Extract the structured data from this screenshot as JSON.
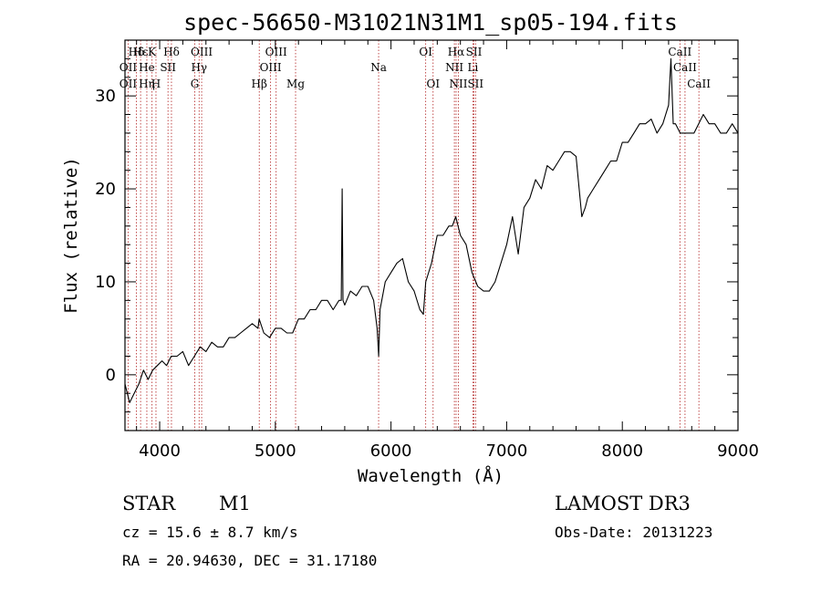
{
  "chart_data": {
    "type": "line",
    "title": "spec-56650-M31021N31M1_sp05-194.fits",
    "xlabel": "Wavelength (Å)",
    "ylabel": "Flux (relative)",
    "xlim": [
      3700,
      9000
    ],
    "ylim": [
      -6,
      36
    ],
    "x_ticks": [
      4000,
      5000,
      6000,
      7000,
      8000,
      9000
    ],
    "y_ticks": [
      0,
      10,
      20,
      30
    ],
    "x_tick_labels": [
      "4000",
      "5000",
      "6000",
      "7000",
      "8000",
      "9000"
    ],
    "y_tick_labels": [
      "0",
      "10",
      "20",
      "30"
    ],
    "series": [
      {
        "name": "spectrum",
        "x": [
          3700,
          3740,
          3780,
          3820,
          3860,
          3900,
          3940,
          3980,
          4020,
          4060,
          4100,
          4150,
          4200,
          4250,
          4300,
          4350,
          4400,
          4450,
          4500,
          4550,
          4600,
          4650,
          4700,
          4750,
          4800,
          4850,
          4860,
          4900,
          4950,
          5000,
          5050,
          5100,
          5150,
          5200,
          5250,
          5300,
          5350,
          5400,
          5450,
          5500,
          5550,
          5570,
          5578,
          5585,
          5600,
          5650,
          5700,
          5750,
          5800,
          5850,
          5880,
          5893,
          5905,
          5950,
          6000,
          6050,
          6100,
          6150,
          6200,
          6250,
          6280,
          6300,
          6350,
          6400,
          6450,
          6500,
          6530,
          6560,
          6600,
          6650,
          6700,
          6750,
          6800,
          6850,
          6900,
          6950,
          7000,
          7050,
          7100,
          7150,
          7200,
          7250,
          7300,
          7350,
          7400,
          7450,
          7500,
          7550,
          7600,
          7650,
          7680,
          7700,
          7750,
          7800,
          7850,
          7900,
          7950,
          8000,
          8050,
          8100,
          8150,
          8200,
          8250,
          8300,
          8350,
          8400,
          8420,
          8440,
          8460,
          8500,
          8540,
          8580,
          8620,
          8660,
          8700,
          8750,
          8800,
          8850,
          8900,
          8950,
          9000
        ],
        "y": [
          -1,
          -3,
          -2,
          -1,
          0.5,
          -0.5,
          0.5,
          1,
          1.5,
          1,
          2,
          2,
          2.5,
          1,
          2,
          3,
          2.5,
          3.5,
          3,
          3,
          4,
          4,
          4.5,
          5,
          5.5,
          5,
          6,
          4.5,
          4,
          5,
          5,
          4.5,
          4.5,
          6,
          6,
          7,
          7,
          8,
          8,
          7,
          8,
          8,
          20,
          8,
          7.5,
          9,
          8.5,
          9.5,
          9.5,
          8,
          5,
          2,
          7,
          10,
          11,
          12,
          12.5,
          10,
          9,
          7,
          6.5,
          10,
          12,
          15,
          15,
          16,
          16,
          17,
          15,
          14,
          11,
          9.5,
          9,
          9,
          10,
          12,
          14,
          17,
          13,
          18,
          19,
          21,
          20,
          22.5,
          22,
          23,
          24,
          24,
          23.5,
          17,
          18,
          19,
          20,
          21,
          22,
          23,
          23,
          25,
          25,
          26,
          27,
          27,
          27.5,
          26,
          27,
          29,
          34,
          27,
          27,
          26,
          26,
          26,
          26,
          27,
          28,
          27,
          27,
          26,
          26,
          27,
          26
        ]
      }
    ],
    "spectral_lines": [
      {
        "label": "Hδ",
        "x": 3798,
        "row": 0
      },
      {
        "label": "OII",
        "x": 3727,
        "row": 1
      },
      {
        "label": "OII",
        "x": 3727,
        "row": 2
      },
      {
        "label": "Hε",
        "x": 3835,
        "row": 0
      },
      {
        "label": "He",
        "x": 3889,
        "row": 1
      },
      {
        "label": "Hη",
        "x": 3889,
        "row": 2
      },
      {
        "label": "K",
        "x": 3934,
        "row": 0
      },
      {
        "label": "H",
        "x": 3968,
        "row": 2
      },
      {
        "label": "SII",
        "x": 4072,
        "row": 1
      },
      {
        "label": "Hδ",
        "x": 4102,
        "row": 0
      },
      {
        "label": "OIII",
        "x": 4363,
        "row": 0
      },
      {
        "label": "Hγ",
        "x": 4341,
        "row": 1
      },
      {
        "label": "G",
        "x": 4304,
        "row": 2
      },
      {
        "label": "Hβ",
        "x": 4861,
        "row": 2
      },
      {
        "label": "OIII",
        "x": 4959,
        "row": 1
      },
      {
        "label": "OIII",
        "x": 5007,
        "row": 0
      },
      {
        "label": "Mg",
        "x": 5175,
        "row": 2
      },
      {
        "label": "Na",
        "x": 5893,
        "row": 1
      },
      {
        "label": "OI",
        "x": 6300,
        "row": 0
      },
      {
        "label": "OI",
        "x": 6364,
        "row": 2
      },
      {
        "label": "NII",
        "x": 6548,
        "row": 1
      },
      {
        "label": "NII",
        "x": 6583,
        "row": 2
      },
      {
        "label": "Hα",
        "x": 6563,
        "row": 0
      },
      {
        "label": "SII",
        "x": 6717,
        "row": 0
      },
      {
        "label": "Li",
        "x": 6708,
        "row": 1
      },
      {
        "label": "SII",
        "x": 6731,
        "row": 2
      },
      {
        "label": "CaII",
        "x": 8498,
        "row": 0
      },
      {
        "label": "CaII",
        "x": 8542,
        "row": 1
      },
      {
        "label": "CaII",
        "x": 8662,
        "row": 2
      }
    ]
  },
  "footer": {
    "object_class": "STAR",
    "subclass": "M1",
    "survey": "LAMOST DR3",
    "cz_text": "cz = 15.6 ± 8.7 km/s",
    "obs_date_text": "Obs-Date: 20131223",
    "coords_text": "RA =  20.94630, DEC =  31.17180"
  },
  "colors": {
    "line_marker": "#b22222",
    "spectrum": "#000000"
  }
}
